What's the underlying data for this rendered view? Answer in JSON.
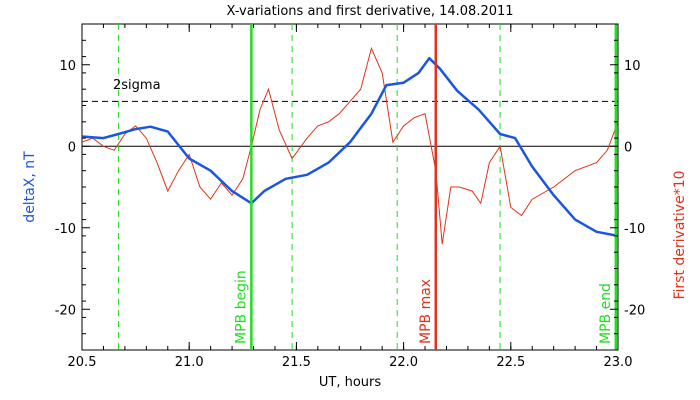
{
  "chart_data": {
    "type": "line",
    "title": "X-variations and first derivative, 14.08.2011",
    "xlabel": "UT, hours",
    "ylabel_left": "deltaX, nT",
    "ylabel_right": "First derivative*10",
    "xlim": [
      20.5,
      23.0
    ],
    "ylim": [
      -25,
      15
    ],
    "x_ticks": [
      20.5,
      21.0,
      21.5,
      22.0,
      22.5,
      23.0
    ],
    "x_tick_labels": [
      "20.5",
      "21.0",
      "21.5",
      "22.0",
      "22.5",
      "23.0"
    ],
    "y_ticks": [
      -20,
      -10,
      0,
      10
    ],
    "y_tick_labels": [
      "-20",
      "-10",
      "0",
      "10"
    ],
    "colors": {
      "deltaX": "#1a56e0",
      "derivative": "#e0331b",
      "marker_green": "#22dd22",
      "marker_red": "#e0331b",
      "axes": "#000000"
    },
    "sigma_level": 5.5,
    "sigma_label": "2sigma",
    "zero_line": 0,
    "dashed_markers_x": [
      20.67,
      21.48,
      21.97,
      22.45
    ],
    "event_markers": [
      {
        "x": 21.29,
        "label": "MPB begin",
        "color": "#22dd22"
      },
      {
        "x": 22.15,
        "label": "MPB max",
        "color": "#e0331b"
      },
      {
        "x": 22.99,
        "label": "MPB end",
        "color": "#22dd22"
      }
    ],
    "series": [
      {
        "name": "deltaX, nT",
        "x": [
          20.5,
          20.6,
          20.67,
          20.75,
          20.82,
          20.9,
          21.0,
          21.1,
          21.2,
          21.29,
          21.35,
          21.45,
          21.55,
          21.65,
          21.75,
          21.85,
          21.92,
          22.0,
          22.07,
          22.12,
          22.17,
          22.25,
          22.35,
          22.45,
          22.52,
          22.6,
          22.7,
          22.8,
          22.9,
          23.0
        ],
        "values": [
          1.2,
          1.0,
          1.5,
          2.1,
          2.4,
          1.8,
          -1.5,
          -3.0,
          -5.5,
          -7.0,
          -5.5,
          -4.0,
          -3.5,
          -2.0,
          0.5,
          4.0,
          7.5,
          7.8,
          9.0,
          10.8,
          9.5,
          6.8,
          4.5,
          1.5,
          1.0,
          -2.5,
          -6.0,
          -9.0,
          -10.5,
          -11.0
        ]
      },
      {
        "name": "First derivative*10",
        "x": [
          20.5,
          20.55,
          20.6,
          20.65,
          20.7,
          20.75,
          20.8,
          20.85,
          20.9,
          20.95,
          21.0,
          21.05,
          21.1,
          21.15,
          21.2,
          21.25,
          21.29,
          21.33,
          21.37,
          21.42,
          21.48,
          21.55,
          21.6,
          21.65,
          21.7,
          21.75,
          21.8,
          21.85,
          21.9,
          21.95,
          22.0,
          22.05,
          22.1,
          22.15,
          22.18,
          22.22,
          22.26,
          22.32,
          22.36,
          22.4,
          22.45,
          22.5,
          22.55,
          22.6,
          22.7,
          22.8,
          22.9,
          22.95,
          23.0
        ],
        "values": [
          0.5,
          1.0,
          0.0,
          -0.5,
          1.5,
          2.5,
          1.0,
          -2.0,
          -5.5,
          -3.0,
          -1.0,
          -5.0,
          -6.5,
          -4.5,
          -6.0,
          -4.0,
          0.0,
          4.5,
          7.0,
          2.0,
          -1.5,
          1.0,
          2.5,
          3.0,
          4.0,
          5.5,
          7.0,
          12.0,
          9.0,
          0.5,
          2.5,
          3.5,
          4.0,
          -3.0,
          -12.0,
          -5.0,
          -5.0,
          -5.5,
          -7.0,
          -2.0,
          0.0,
          -7.5,
          -8.5,
          -6.5,
          -5.0,
          -3.0,
          -2.0,
          -0.5,
          3.0
        ]
      }
    ]
  }
}
